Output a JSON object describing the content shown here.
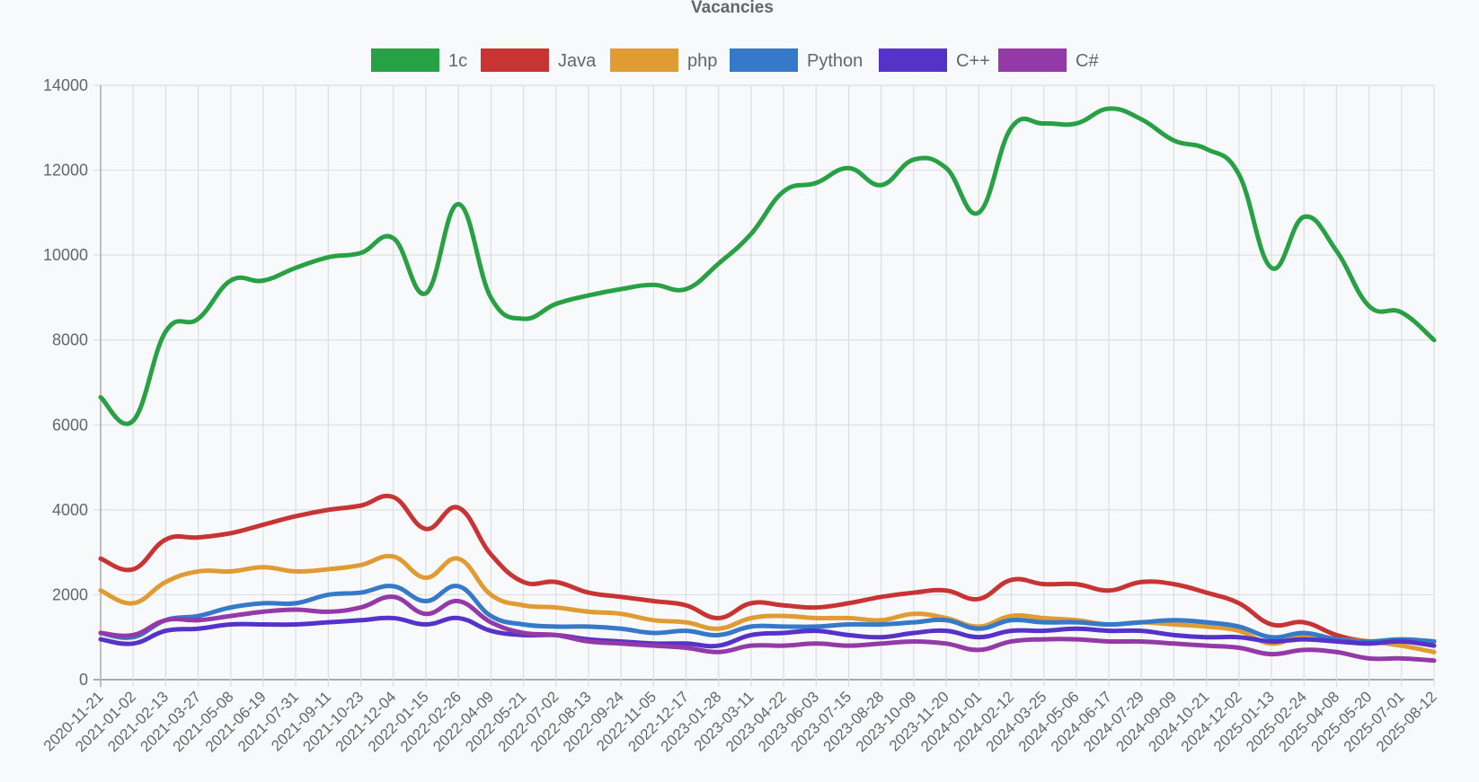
{
  "chart_data": {
    "type": "line",
    "title": "Vacancies",
    "xlabel": "",
    "ylabel": "",
    "ylim": [
      0,
      14000
    ],
    "yticks": [
      0,
      2000,
      4000,
      6000,
      8000,
      10000,
      12000,
      14000
    ],
    "grid": true,
    "legend_position": "top",
    "categories": [
      "2020-11-21",
      "2021-01-02",
      "2021-02-13",
      "2021-03-27",
      "2021-05-08",
      "2021-06-19",
      "2021-07-31",
      "2021-09-11",
      "2021-10-23",
      "2021-12-04",
      "2022-01-15",
      "2022-02-26",
      "2022-04-09",
      "2022-05-21",
      "2022-07-02",
      "2022-08-13",
      "2022-09-24",
      "2022-11-05",
      "2022-12-17",
      "2023-01-28",
      "2023-03-11",
      "2023-04-22",
      "2023-06-03",
      "2023-07-15",
      "2023-08-28",
      "2023-10-09",
      "2023-11-20",
      "2024-01-01",
      "2024-02-12",
      "2024-03-25",
      "2024-05-06",
      "2024-06-17",
      "2024-07-29",
      "2024-09-09",
      "2024-10-21",
      "2024-12-02",
      "2025-01-13",
      "2025-02-24",
      "2025-04-08",
      "2025-05-20",
      "2025-07-01",
      "2025-08-12"
    ],
    "series": [
      {
        "name": "1c",
        "color": "#28a145",
        "values": [
          6650,
          6100,
          8200,
          8500,
          9400,
          9400,
          9700,
          9950,
          10050,
          10400,
          9100,
          11200,
          9000,
          8500,
          8850,
          9050,
          9200,
          9300,
          9200,
          9800,
          10500,
          11500,
          11700,
          12050,
          11650,
          12250,
          12050,
          11000,
          13000,
          13100,
          13100,
          13450,
          13200,
          12700,
          12500,
          11900,
          9700,
          10900,
          10100,
          8800,
          8650,
          8000
        ]
      },
      {
        "name": "Java",
        "color": "#c83434",
        "values": [
          2850,
          2600,
          3300,
          3350,
          3450,
          3650,
          3850,
          4000,
          4100,
          4300,
          3550,
          4050,
          2950,
          2300,
          2300,
          2050,
          1950,
          1850,
          1750,
          1450,
          1800,
          1750,
          1700,
          1800,
          1950,
          2050,
          2100,
          1900,
          2350,
          2250,
          2250,
          2100,
          2300,
          2250,
          2050,
          1800,
          1300,
          1350,
          1050,
          900,
          900,
          900
        ]
      },
      {
        "name": "php",
        "color": "#e09b32",
        "values": [
          2100,
          1800,
          2300,
          2550,
          2550,
          2650,
          2550,
          2600,
          2700,
          2900,
          2400,
          2850,
          2000,
          1750,
          1700,
          1600,
          1550,
          1400,
          1350,
          1200,
          1450,
          1500,
          1450,
          1450,
          1400,
          1550,
          1450,
          1250,
          1500,
          1450,
          1400,
          1300,
          1350,
          1300,
          1250,
          1150,
          850,
          1050,
          950,
          900,
          800,
          650
        ]
      },
      {
        "name": "Python",
        "color": "#3579c8",
        "values": [
          1100,
          1000,
          1400,
          1500,
          1700,
          1800,
          1800,
          2000,
          2050,
          2200,
          1850,
          2200,
          1500,
          1300,
          1250,
          1250,
          1200,
          1100,
          1150,
          1050,
          1250,
          1250,
          1250,
          1300,
          1300,
          1350,
          1400,
          1200,
          1400,
          1350,
          1350,
          1300,
          1350,
          1400,
          1350,
          1250,
          1000,
          1100,
          950,
          900,
          950,
          900
        ]
      },
      {
        "name": "C++",
        "color": "#5533c8",
        "values": [
          950,
          850,
          1150,
          1200,
          1300,
          1300,
          1300,
          1350,
          1400,
          1450,
          1300,
          1450,
          1150,
          1050,
          1050,
          950,
          900,
          850,
          850,
          800,
          1050,
          1100,
          1150,
          1050,
          1000,
          1100,
          1150,
          1000,
          1150,
          1150,
          1200,
          1150,
          1150,
          1050,
          1000,
          1000,
          900,
          950,
          900,
          850,
          900,
          800
        ]
      },
      {
        "name": "C#",
        "color": "#9439a8",
        "values": [
          1100,
          1050,
          1400,
          1400,
          1500,
          1600,
          1650,
          1600,
          1700,
          1950,
          1550,
          1850,
          1350,
          1100,
          1050,
          900,
          850,
          800,
          750,
          650,
          800,
          800,
          850,
          800,
          850,
          900,
          850,
          700,
          900,
          950,
          950,
          900,
          900,
          850,
          800,
          750,
          600,
          700,
          650,
          500,
          500,
          450
        ]
      }
    ]
  }
}
